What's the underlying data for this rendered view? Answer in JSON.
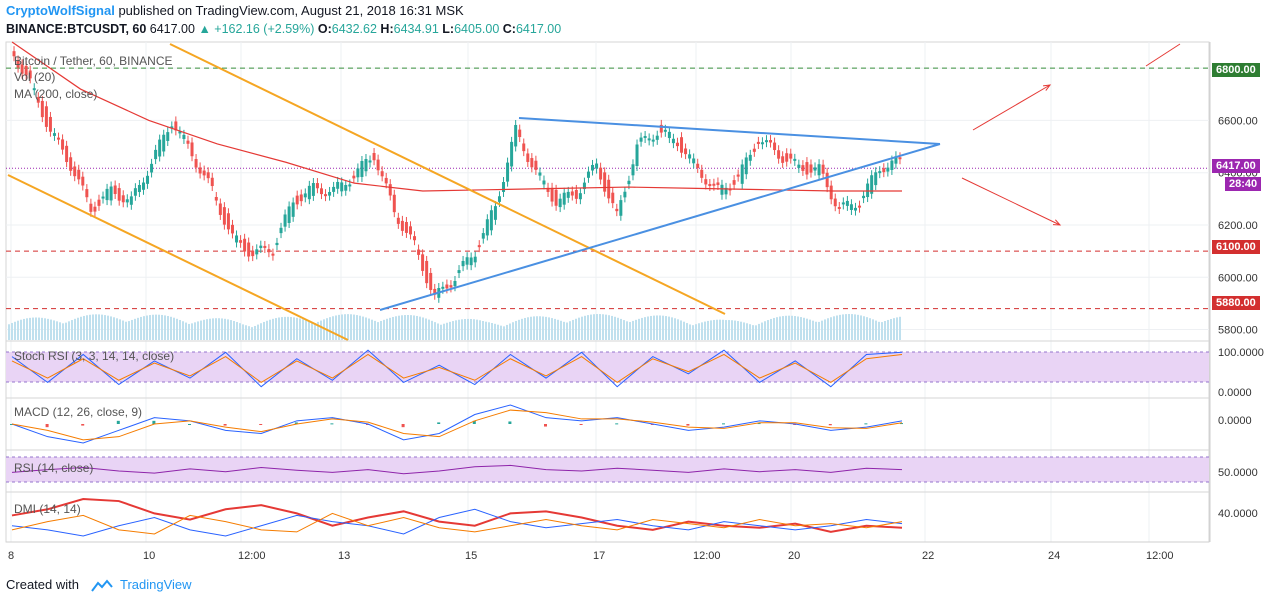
{
  "header": {
    "author": "CryptoWolfSignal",
    "published": "published on TradingView.com, August 21, 2018 16:31 MSK",
    "symbol": "BINANCE:BTCUSDT, 60",
    "last": "6417.00",
    "change": "▲ +162.16 (+2.59%)",
    "o_label": "O:",
    "o_value": "6432.62",
    "h_label": "H:",
    "h_value": "6434.91",
    "l_label": "L:",
    "l_value": "6405.00",
    "c_label": "C:",
    "c_value": "6417.00"
  },
  "legends": {
    "main": "Bitcoin / Tether, 60, BINANCE",
    "vol": "Vol (20)",
    "ma": "MA (200, close)",
    "stoch": "Stoch RSI (3, 3, 14, 14, close)",
    "macd": "MACD (12, 26, close, 9)",
    "rsi": "RSI (14, close)",
    "dmi": "DMI (14, 14)"
  },
  "price_tags": {
    "r6800": "6800.00",
    "current": "6417.00",
    "countdown": "28:40",
    "r6100": "6100.00",
    "r5880": "5880.00"
  },
  "footer": {
    "created_with": "Created with",
    "brand": "TradingView"
  },
  "colors": {
    "up": "#26a69a",
    "down": "#ef5350",
    "ma": "#e53935",
    "triangle": "#4a90e2",
    "channel": "#f5a623",
    "support": "#d32f2f",
    "resistance": "#388e3c",
    "current": "#9c27b0"
  },
  "chart_data": [
    {
      "type": "line",
      "title": "Bitcoin / Tether, 60, BINANCE",
      "x_ticks": [
        "8",
        "10",
        "12:00",
        "13",
        "15",
        "17",
        "12:00",
        "20",
        "22",
        "24",
        "12:00"
      ],
      "y_ticks": [
        5800,
        6000,
        6200,
        6400,
        6600,
        6800
      ],
      "ylim": [
        5760,
        6900
      ],
      "horizontal_levels": [
        {
          "value": 6800,
          "label": "6800.00",
          "style": "dashed-green"
        },
        {
          "value": 6100,
          "label": "6100.00",
          "style": "dashed-red"
        },
        {
          "value": 5880,
          "label": "5880.00",
          "style": "dashed-red"
        },
        {
          "value": 6417,
          "label": "6417.00",
          "style": "dotted-current"
        }
      ],
      "series": [
        {
          "name": "",
          "values": [
            6880,
            6740,
            6560,
            6430,
            6260,
            6330,
            6290,
            6440,
            6600,
            6470,
            6330,
            6150,
            6090,
            6110,
            6290,
            6340,
            6330,
            6390,
            6470,
            6250,
            6120,
            5920,
            6000,
            6100,
            6270,
            6560,
            6400,
            6290,
            6320,
            6430,
            6230,
            6500,
            6560,
            6520,
            6410,
            6330,
            6380,
            6530,
            6470,
            6420,
            6410,
            6260,
            6290,
            6420,
            6445
          ]
        },
        {
          "name": "MA (200, close)",
          "values": [
            6900,
            6720,
            6600,
            6510,
            6440,
            6360,
            6330,
            6335,
            6340,
            6345,
            6340,
            6335,
            6330,
            6330
          ]
        }
      ],
      "grid": true,
      "legend": "top-left"
    },
    {
      "type": "line",
      "title": "Stoch RSI (3, 3, 14, 14, close)",
      "y_ticks": [
        "100.0000",
        "0.0000"
      ],
      "ylim": [
        0,
        100
      ],
      "series": [
        {
          "name": "",
          "values": [
            80,
            20,
            85,
            15,
            70,
            30,
            90,
            10,
            75,
            25,
            95,
            20,
            60,
            15,
            85,
            30,
            90,
            10,
            80,
            40,
            95,
            20,
            70,
            10,
            85,
            90
          ]
        },
        {
          "name": "",
          "values": [
            70,
            30,
            75,
            25,
            65,
            35,
            80,
            20,
            70,
            30,
            85,
            30,
            55,
            25,
            75,
            35,
            80,
            20,
            75,
            45,
            85,
            30,
            65,
            20,
            75,
            85
          ]
        }
      ]
    },
    {
      "type": "line",
      "title": "MACD (12, 26, close, 9)",
      "y_ticks": [
        "0.0000"
      ],
      "series": [
        {
          "name": "",
          "values": [
            0,
            -20,
            -30,
            -10,
            10,
            5,
            -10,
            -15,
            5,
            10,
            0,
            -25,
            -15,
            15,
            30,
            10,
            5,
            10,
            0,
            -10,
            -5,
            5,
            0,
            -10,
            -5,
            5
          ]
        },
        {
          "name": "",
          "values": [
            0,
            -10,
            -25,
            -20,
            0,
            5,
            -5,
            -12,
            0,
            8,
            3,
            -15,
            -20,
            5,
            22,
            18,
            8,
            8,
            3,
            -5,
            -7,
            2,
            2,
            -6,
            -7,
            2
          ]
        }
      ]
    },
    {
      "type": "line",
      "title": "RSI (14, close)",
      "y_ticks": [
        "50.0000"
      ],
      "ylim": [
        30,
        70
      ],
      "series": [
        {
          "name": "",
          "values": [
            48,
            52,
            55,
            50,
            47,
            53,
            49,
            55,
            51,
            48,
            52,
            46,
            50,
            56,
            58,
            52,
            50,
            54,
            51,
            48,
            53,
            49,
            52,
            48,
            54,
            52
          ]
        }
      ]
    },
    {
      "type": "line",
      "title": "DMI (14, 14)",
      "y_ticks": [
        "40.0000"
      ],
      "series": [
        {
          "name": "",
          "values": [
            35,
            38,
            43,
            42,
            36,
            33,
            38,
            40,
            36,
            30,
            34,
            37,
            32,
            30,
            36,
            37,
            34,
            30,
            28,
            32,
            30,
            29,
            31,
            27,
            30,
            29
          ]
        },
        {
          "name": "",
          "values": [
            30,
            28,
            25,
            30,
            34,
            28,
            25,
            30,
            35,
            32,
            30,
            26,
            34,
            38,
            32,
            29,
            31,
            33,
            30,
            28,
            32,
            30,
            28,
            30,
            33,
            31
          ]
        },
        {
          "name": "",
          "values": [
            28,
            32,
            35,
            28,
            26,
            35,
            32,
            28,
            27,
            36,
            30,
            34,
            29,
            27,
            30,
            33,
            30,
            28,
            33,
            31,
            29,
            33,
            30,
            31,
            29,
            32
          ]
        }
      ]
    }
  ]
}
